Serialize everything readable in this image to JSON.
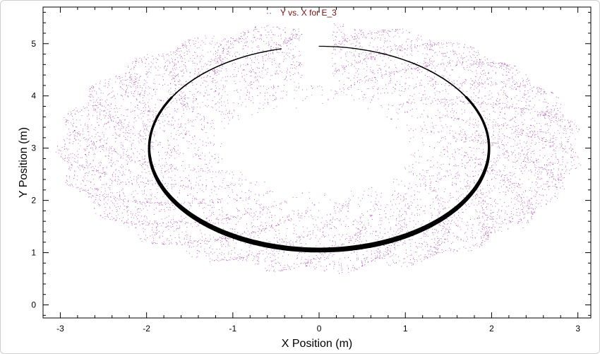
{
  "chart_data": {
    "type": "scatter",
    "title": "",
    "xlabel": "X Position (m)",
    "ylabel": "Y Position (m)",
    "xlim": [
      -3.2,
      3.15
    ],
    "ylim": [
      -0.25,
      5.7
    ],
    "xticks": [
      -3,
      -2,
      -1,
      0,
      1,
      2,
      3
    ],
    "xtick_labels": [
      "-3",
      "-2",
      "-1",
      "0",
      "1",
      "2",
      "3"
    ],
    "yticks": [
      0,
      1,
      2,
      3,
      4,
      5
    ],
    "ytick_labels": [
      "0",
      "1",
      "2",
      "3",
      "4",
      "5"
    ],
    "grid": false,
    "legend": {
      "position": "top-center",
      "entries": [
        "Y vs. X for E_3"
      ]
    },
    "series": [
      {
        "name": "Y vs. X for E_3",
        "style": "dotted",
        "color": "#8e1e8e",
        "description_band": {
          "center": [
            0.0,
            3.0
          ],
          "inner_semi_axes": [
            1.0,
            0.85
          ],
          "outer_semi_axes": [
            3.0,
            2.35
          ],
          "top_gap_x": [
            -0.2,
            0.15
          ]
        }
      },
      {
        "name": "",
        "style": "solid",
        "color": "#000000",
        "arc": {
          "center": [
            0.0,
            3.0
          ],
          "semi_axes": [
            1.97,
            1.95
          ],
          "start": [
            0.0,
            5.0
          ],
          "end": [
            -0.45,
            4.95
          ],
          "direction": "clockwise"
        }
      }
    ]
  },
  "colors": {
    "dotted_series": "#8e1e8e",
    "legend_text": "#7a1010",
    "solid_series": "#000000"
  }
}
